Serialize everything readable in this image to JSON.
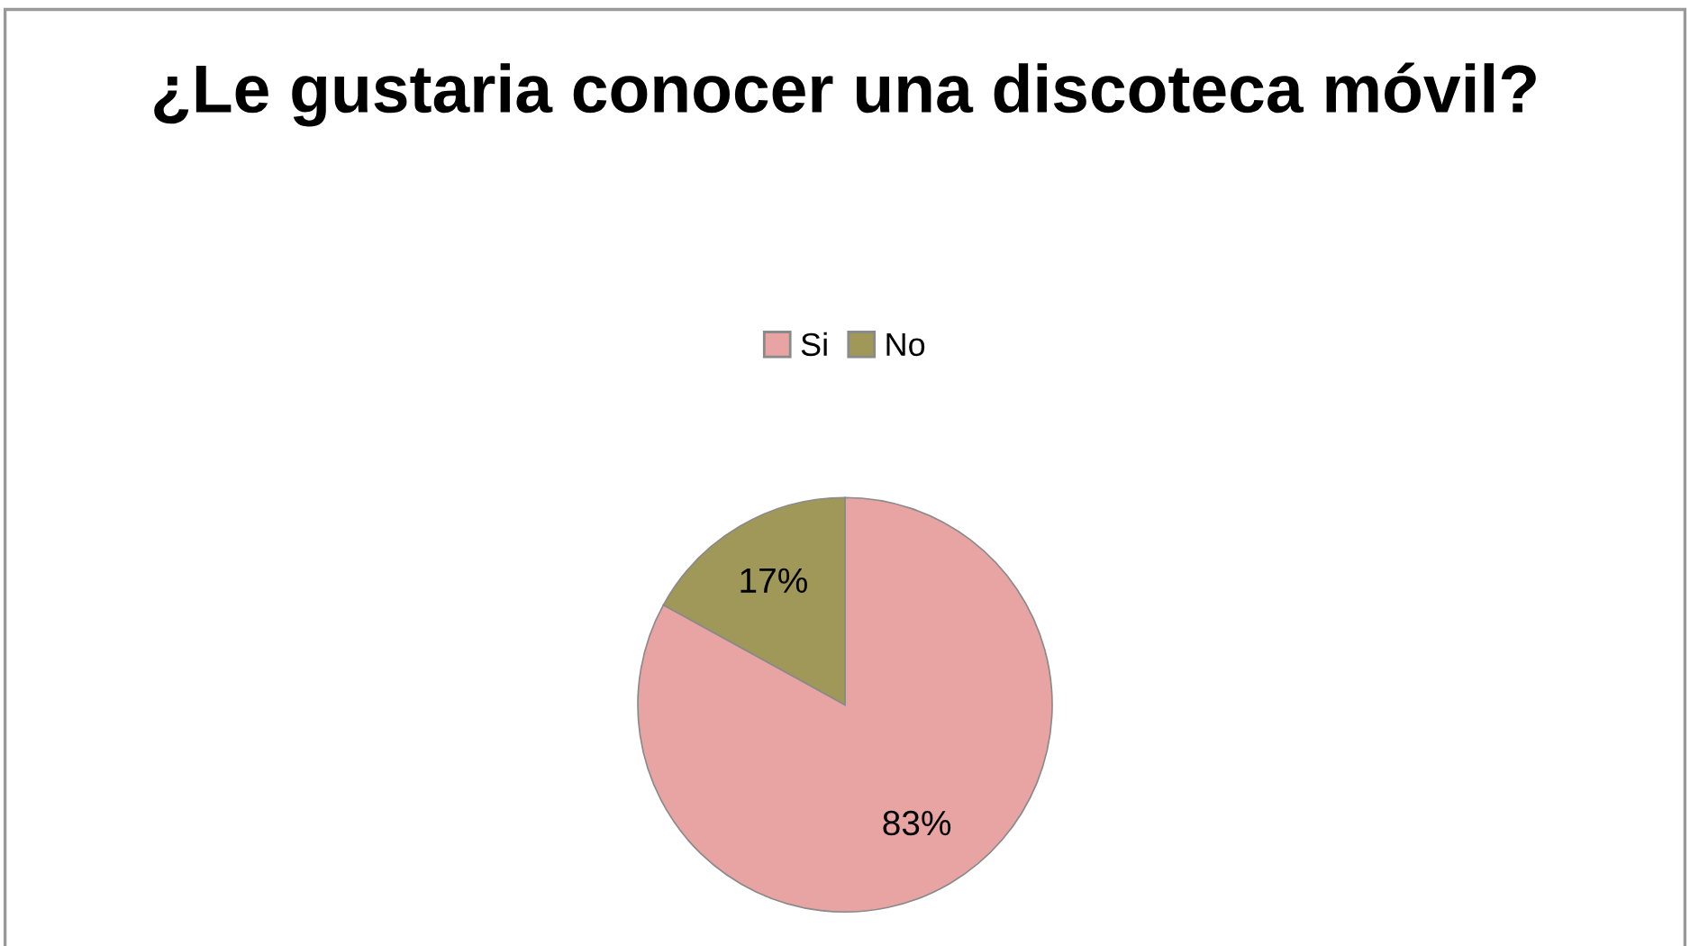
{
  "chart_data": {
    "type": "pie",
    "title": "¿Le gustaria conocer una discoteca móvil?",
    "categories": [
      "Si",
      "No"
    ],
    "values": [
      83,
      17
    ],
    "colors": [
      "#e8a3a3",
      "#a09858"
    ],
    "value_labels": [
      "83%",
      "17%"
    ],
    "legend": "top"
  }
}
